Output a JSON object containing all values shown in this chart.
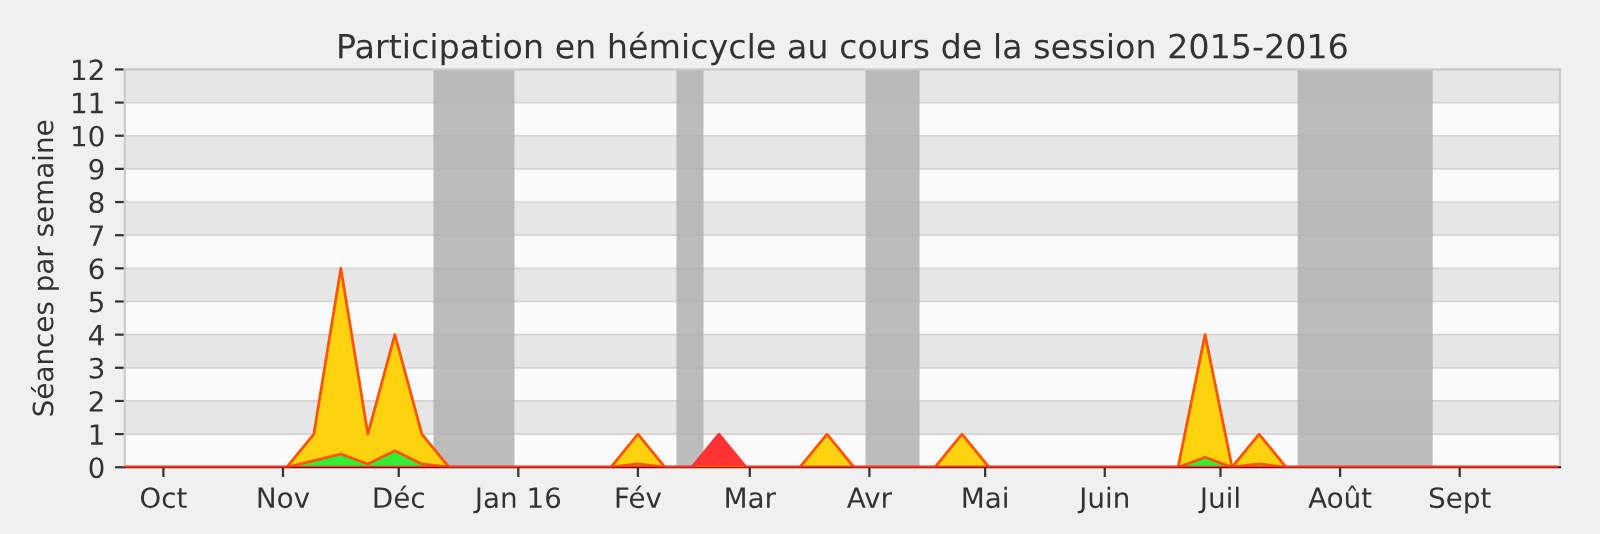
{
  "chart_data": {
    "type": "area",
    "title": "Participation en hémicycle au cours de la session 2015-2016",
    "ylabel": "Séances par semaine",
    "x": [
      "2015-09-21",
      "2015-09-28",
      "2015-10-05",
      "2015-10-12",
      "2015-10-19",
      "2015-10-26",
      "2015-11-02",
      "2015-11-09",
      "2015-11-16",
      "2015-11-23",
      "2015-11-30",
      "2015-12-07",
      "2015-12-14",
      "2015-12-21",
      "2015-12-28",
      "2016-01-04",
      "2016-01-11",
      "2016-01-18",
      "2016-01-25",
      "2016-02-01",
      "2016-02-08",
      "2016-02-15",
      "2016-02-22",
      "2016-02-29",
      "2016-03-07",
      "2016-03-14",
      "2016-03-21",
      "2016-03-28",
      "2016-04-04",
      "2016-04-11",
      "2016-04-18",
      "2016-04-25",
      "2016-05-02",
      "2016-05-09",
      "2016-05-16",
      "2016-05-23",
      "2016-05-30",
      "2016-06-06",
      "2016-06-13",
      "2016-06-20",
      "2016-06-27",
      "2016-07-04",
      "2016-07-11",
      "2016-07-18",
      "2016-07-25",
      "2016-08-01",
      "2016-08-08",
      "2016-08-15",
      "2016-08-22",
      "2016-08-29",
      "2016-09-05",
      "2016-09-12",
      "2016-09-19",
      "2016-09-26"
    ],
    "series": [
      {
        "color": "#ffd20f",
        "values": [
          0,
          0,
          0,
          0,
          0,
          0,
          0,
          1,
          6,
          1,
          4,
          1,
          0,
          0,
          0,
          0,
          0,
          0,
          0,
          1,
          0,
          0,
          0,
          0,
          0,
          0,
          1,
          0,
          0,
          0,
          0,
          1,
          0,
          0,
          0,
          0,
          0,
          0,
          0,
          0,
          4,
          0,
          1,
          0,
          0,
          0,
          0,
          0,
          0,
          0,
          0,
          0,
          0,
          0
        ]
      },
      {
        "color": "#33ee33",
        "values": [
          0,
          0,
          0,
          0,
          0,
          0,
          0,
          0.2,
          0.4,
          0.1,
          0.5,
          0.1,
          0,
          0,
          0,
          0,
          0,
          0,
          0,
          0.1,
          0,
          0,
          0,
          0,
          0,
          0,
          0,
          0,
          0,
          0,
          0,
          0,
          0,
          0,
          0,
          0,
          0,
          0,
          0,
          0,
          0.3,
          0,
          0.1,
          0,
          0,
          0,
          0,
          0,
          0,
          0,
          0,
          0,
          0,
          0
        ]
      },
      {
        "color": "#ff3333",
        "values": [
          0,
          0,
          0,
          0,
          0,
          0,
          0,
          0,
          0,
          0,
          0,
          0,
          0,
          0,
          0,
          0,
          0,
          0,
          0,
          0,
          0,
          0,
          1,
          0,
          0,
          0,
          0,
          0,
          0,
          0,
          0,
          0,
          0,
          0,
          0,
          0,
          0,
          0,
          0,
          0,
          0,
          0,
          0,
          0,
          0,
          0,
          0,
          0,
          0,
          0,
          0,
          0,
          0,
          0
        ]
      }
    ],
    "bands": [
      {
        "axis": "x",
        "from": "2015-12-10",
        "to": "2015-12-31",
        "color": "#b0b0b0"
      },
      {
        "axis": "x",
        "from": "2016-02-11",
        "to": "2016-02-18",
        "color": "#b0b0b0"
      },
      {
        "axis": "x",
        "from": "2016-03-31",
        "to": "2016-04-14",
        "color": "#b0b0b0"
      },
      {
        "axis": "x",
        "from": "2016-07-21",
        "to": "2016-08-25",
        "color": "#b0b0b0"
      }
    ],
    "xlim": [
      "2015-09-21",
      "2016-09-27"
    ],
    "xticks": [
      {
        "value": "2015-10-01",
        "label": "Oct"
      },
      {
        "value": "2015-11-01",
        "label": "Nov"
      },
      {
        "value": "2015-12-01",
        "label": "Déc"
      },
      {
        "value": "2016-01-01",
        "label": "Jan 16"
      },
      {
        "value": "2016-02-01",
        "label": "Fév"
      },
      {
        "value": "2016-03-01",
        "label": "Mar"
      },
      {
        "value": "2016-04-01",
        "label": "Avr"
      },
      {
        "value": "2016-05-01",
        "label": "Mai"
      },
      {
        "value": "2016-06-01",
        "label": "Juin"
      },
      {
        "value": "2016-07-01",
        "label": "Juil"
      },
      {
        "value": "2016-08-01",
        "label": "Août"
      },
      {
        "value": "2016-09-01",
        "label": "Sept"
      }
    ],
    "ylim": [
      0,
      12
    ],
    "yticks": [
      0,
      1,
      2,
      3,
      4,
      5,
      6,
      7,
      8,
      9,
      10,
      11,
      12
    ],
    "grid": "y"
  }
}
